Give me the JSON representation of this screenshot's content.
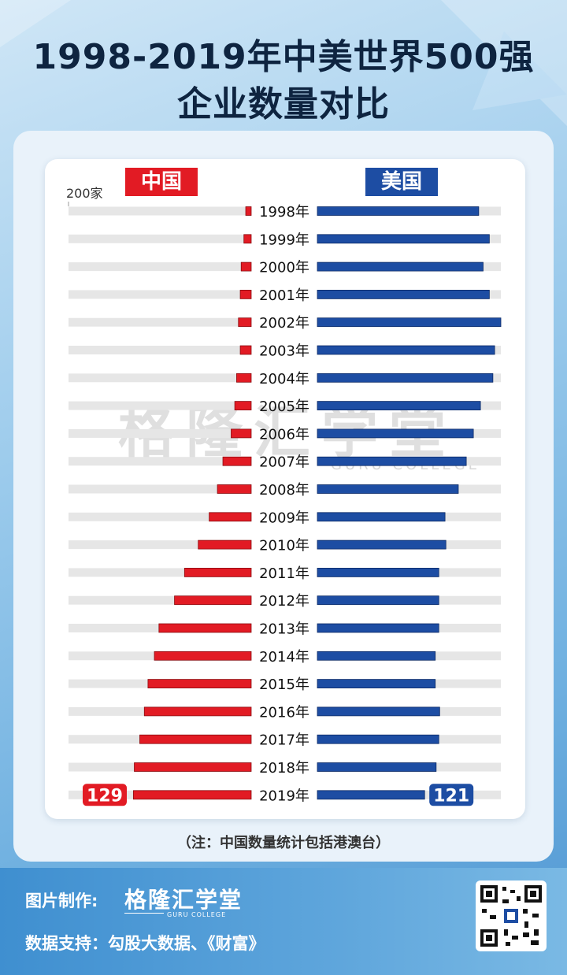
{
  "title_line1": "1998-2019年中美世界500强",
  "title_line2": "企业数量对比",
  "legend": {
    "china": "中国",
    "usa": "美国"
  },
  "scale_label": "200家",
  "watermark": "格隆汇学堂",
  "watermark_sub": "GURU COLLEGE",
  "note": "（注：中国数量统计包括港澳台）",
  "footer": {
    "made_by_label": "图片制作:",
    "made_by_logo": "格隆汇学堂",
    "made_by_logo_sub": "GURU COLLEGE",
    "source_label": "数据支持：勾股大数据、《财富》"
  },
  "colors": {
    "china": "#e21b24",
    "usa": "#1d4da3",
    "track": "#e6e6e6",
    "title": "#0e2440"
  },
  "chart_data": {
    "type": "bar",
    "orientation": "horizontal-butterfly",
    "scale_max": 200,
    "categories": [
      "1998年",
      "1999年",
      "2000年",
      "2001年",
      "2002年",
      "2003年",
      "2004年",
      "2005年",
      "2006年",
      "2007年",
      "2008年",
      "2009年",
      "2010年",
      "2011年",
      "2012年",
      "2013年",
      "2014年",
      "2015年",
      "2016年",
      "2017年",
      "2018年",
      "2019年"
    ],
    "series": [
      {
        "name": "中国",
        "side": "left",
        "values": [
          6,
          8,
          11,
          12,
          14,
          12,
          16,
          18,
          22,
          31,
          37,
          46,
          58,
          73,
          84,
          101,
          106,
          113,
          117,
          122,
          128,
          129
        ]
      },
      {
        "name": "美国",
        "side": "right",
        "values": [
          182,
          194,
          187,
          194,
          207,
          200,
          198,
          184,
          176,
          168,
          159,
          144,
          145,
          137,
          137,
          137,
          133,
          133,
          138,
          137,
          134,
          121
        ]
      }
    ],
    "end_labels": {
      "china": "129",
      "usa": "121"
    }
  }
}
